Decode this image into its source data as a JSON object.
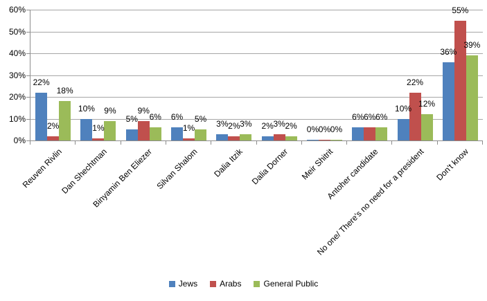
{
  "chart_data": {
    "type": "bar",
    "categories": [
      "Reuven Rivlin",
      "Dan Shechtman",
      "Binyamin Ben Eliezer",
      "Silvan Shalom",
      "Dalia Itzik",
      "Dalia Dorner",
      "Meir Shitrit",
      "Antoher candidate",
      "No one/ There's no need for a president",
      "Don't know"
    ],
    "series": [
      {
        "name": "Jews",
        "color": "#4F81BD",
        "values": [
          22,
          10,
          5,
          6,
          3,
          2,
          0,
          6,
          10,
          36
        ]
      },
      {
        "name": "Arabs",
        "color": "#C0504D",
        "values": [
          2,
          1,
          9,
          1,
          2,
          3,
          0,
          6,
          22,
          55
        ]
      },
      {
        "name": "General Public",
        "color": "#9BBB59",
        "values": [
          18,
          9,
          6,
          5,
          3,
          2,
          0,
          6,
          12,
          39
        ]
      }
    ],
    "value_suffix": "%",
    "yticks": [
      "0%",
      "10%",
      "20%",
      "30%",
      "40%",
      "50%",
      "60%"
    ],
    "ytick_step": 10,
    "ylim": [
      0,
      60
    ],
    "grid": "horizontal",
    "data_labels": "outside-end",
    "legend_position": "bottom",
    "xlabel": "",
    "ylabel": "",
    "title": ""
  },
  "colors": {
    "background": "#FFFFFF",
    "axis": "#8C8C8C",
    "gridline": "#A6A6A6",
    "text": "#000000"
  }
}
